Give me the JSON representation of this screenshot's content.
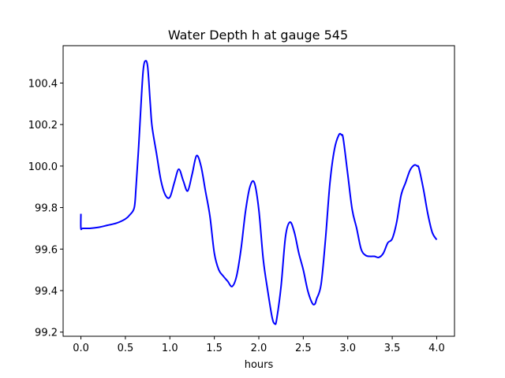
{
  "chart_data": {
    "type": "line",
    "title": "Water Depth h at gauge 545",
    "xlabel": "hours",
    "ylabel": "",
    "xlim": [
      -0.2,
      4.2
    ],
    "ylim": [
      99.18,
      100.58
    ],
    "xticks": [
      0.0,
      0.5,
      1.0,
      1.5,
      2.0,
      2.5,
      3.0,
      3.5,
      4.0
    ],
    "xtick_labels": [
      "0.0",
      "0.5",
      "1.0",
      "1.5",
      "2.0",
      "2.5",
      "3.0",
      "3.5",
      "4.0"
    ],
    "yticks": [
      99.2,
      99.4,
      99.6,
      99.8,
      100.0,
      100.2,
      100.4
    ],
    "ytick_labels": [
      "99.2",
      "99.4",
      "99.6",
      "99.8",
      "100.0",
      "100.2",
      "100.4"
    ],
    "grid": false,
    "series": [
      {
        "color": "#0000ff",
        "x": [
          0.0,
          0.0,
          0.02,
          0.1,
          0.2,
          0.3,
          0.4,
          0.5,
          0.55,
          0.6,
          0.62,
          0.65,
          0.68,
          0.7,
          0.72,
          0.75,
          0.78,
          0.8,
          0.85,
          0.9,
          0.95,
          1.0,
          1.05,
          1.1,
          1.15,
          1.2,
          1.25,
          1.3,
          1.35,
          1.4,
          1.45,
          1.5,
          1.55,
          1.6,
          1.65,
          1.7,
          1.75,
          1.8,
          1.85,
          1.9,
          1.95,
          2.0,
          2.05,
          2.1,
          2.15,
          2.18,
          2.2,
          2.25,
          2.3,
          2.35,
          2.4,
          2.45,
          2.5,
          2.55,
          2.6,
          2.63,
          2.65,
          2.7,
          2.75,
          2.8,
          2.85,
          2.9,
          2.93,
          2.95,
          3.0,
          3.05,
          3.1,
          3.15,
          3.2,
          3.25,
          3.3,
          3.35,
          3.4,
          3.45,
          3.5,
          3.55,
          3.6,
          3.65,
          3.7,
          3.75,
          3.78,
          3.8,
          3.85,
          3.9,
          3.95,
          4.0
        ],
        "y": [
          99.77,
          99.7,
          99.7,
          99.7,
          99.705,
          99.715,
          99.725,
          99.745,
          99.765,
          99.8,
          99.9,
          100.1,
          100.33,
          100.46,
          100.505,
          100.48,
          100.3,
          100.19,
          100.06,
          99.93,
          99.86,
          99.85,
          99.92,
          99.985,
          99.93,
          99.88,
          99.96,
          100.05,
          100.0,
          99.88,
          99.76,
          99.58,
          99.5,
          99.47,
          99.445,
          99.42,
          99.47,
          99.6,
          99.78,
          99.9,
          99.92,
          99.79,
          99.55,
          99.4,
          99.27,
          99.24,
          99.26,
          99.42,
          99.66,
          99.73,
          99.68,
          99.58,
          99.5,
          99.4,
          99.34,
          99.335,
          99.36,
          99.43,
          99.65,
          99.92,
          100.08,
          100.15,
          100.15,
          100.13,
          99.96,
          99.79,
          99.7,
          99.6,
          99.57,
          99.565,
          99.565,
          99.56,
          99.58,
          99.63,
          99.65,
          99.73,
          99.86,
          99.92,
          99.98,
          100.005,
          100.0,
          99.99,
          99.89,
          99.77,
          99.68,
          99.645
        ]
      }
    ]
  }
}
